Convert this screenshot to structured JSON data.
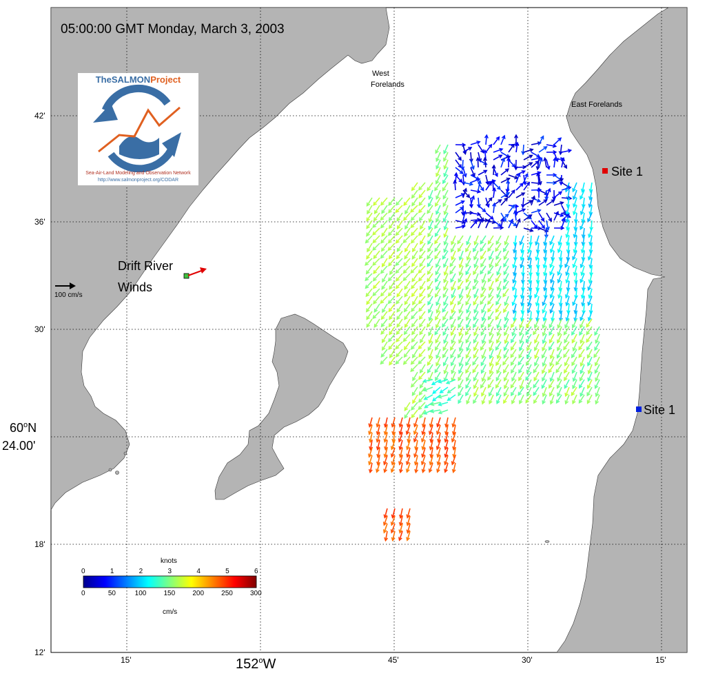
{
  "title": "05:00:00 GMT Monday, March 3, 2003",
  "lat_ticks": [
    "42'",
    "36'",
    "30'",
    "18'",
    "12'"
  ],
  "lat_major": {
    "label_a": "60",
    "label_deg": "o",
    "label_b": "N",
    "label_c": "24.00'"
  },
  "lon_ticks": [
    "15'",
    "45'",
    "30'",
    "15'"
  ],
  "lon_major": {
    "label_a": "152",
    "label_deg": "o",
    "label_b": "W"
  },
  "places": {
    "west_forelands_1": "West",
    "west_forelands_2": "Forelands",
    "east_forelands": "East Forelands",
    "drift_river_1": "Drift River",
    "drift_river_2": "Winds",
    "site1_top": "Site 1",
    "site1_bottom": "Site 1"
  },
  "scale_arrow": {
    "label": "100 cm/s"
  },
  "colorbar": {
    "knots_label": "knots",
    "cms_label": "cm/s",
    "knots_ticks": [
      "0",
      "1",
      "2",
      "3",
      "4",
      "5",
      "6"
    ],
    "cms_ticks": [
      "0",
      "50",
      "100",
      "150",
      "200",
      "250",
      "300"
    ]
  },
  "logo": {
    "name_a": "TheSALMON",
    "name_b": "Project",
    "subtitle": "Sea-Air-Land Modeling and Observation Network",
    "url": "http://www.salmonproject.org/CODAR"
  },
  "colors": {
    "land": "#b4b4b4",
    "water": "#ffffff",
    "site_top": "#e00000",
    "site_bottom": "#0020e0",
    "wind_station": "#40c040",
    "wind_arrow": "#e00000"
  }
}
